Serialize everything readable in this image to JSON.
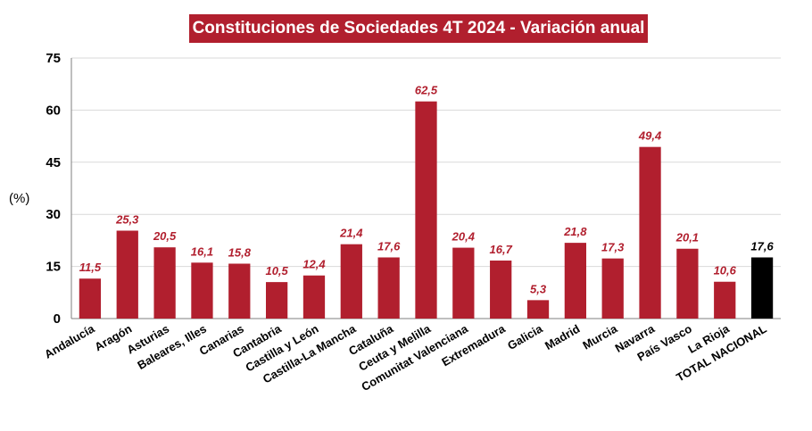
{
  "chart_data": {
    "type": "bar",
    "title": "Constituciones de Sociedades 4T 2024 - Variación anual",
    "xlabel": "",
    "ylabel": "(%)",
    "ylim": [
      0,
      75
    ],
    "yticks": [
      "0",
      "15",
      "30",
      "45",
      "60",
      "75"
    ],
    "grid": true,
    "categories": [
      "Andalucía",
      "Aragón",
      "Asturias",
      "Baleares, Illes",
      "Canarias",
      "Cantabria",
      "Castilla y León",
      "Castilla-La Mancha",
      "Cataluña",
      "Ceuta y Melilla",
      "Comunitat Valenciana",
      "Extremadura",
      "Galicia",
      "Madrid",
      "Murcia",
      "Navarra",
      "País Vasco",
      "La Rioja",
      "TOTAL NACIONAL"
    ],
    "values": [
      11.5,
      25.3,
      20.5,
      16.1,
      15.8,
      10.5,
      12.4,
      21.4,
      17.6,
      62.5,
      20.4,
      16.7,
      5.3,
      21.8,
      17.3,
      49.4,
      20.1,
      10.6,
      17.6
    ],
    "value_labels": [
      "11,5",
      "25,3",
      "20,5",
      "16,1",
      "15,8",
      "10,5",
      "12,4",
      "21,4",
      "17,6",
      "62,5",
      "20,4",
      "16,7",
      "5,3",
      "21,8",
      "17,3",
      "49,4",
      "20,1",
      "10,6",
      "17,6"
    ],
    "colors": {
      "bar": "#b11f2e",
      "total_bar": "#000000",
      "label": "#b11f2e",
      "total_label": "#000000",
      "title_bg": "#b11f2e"
    }
  }
}
